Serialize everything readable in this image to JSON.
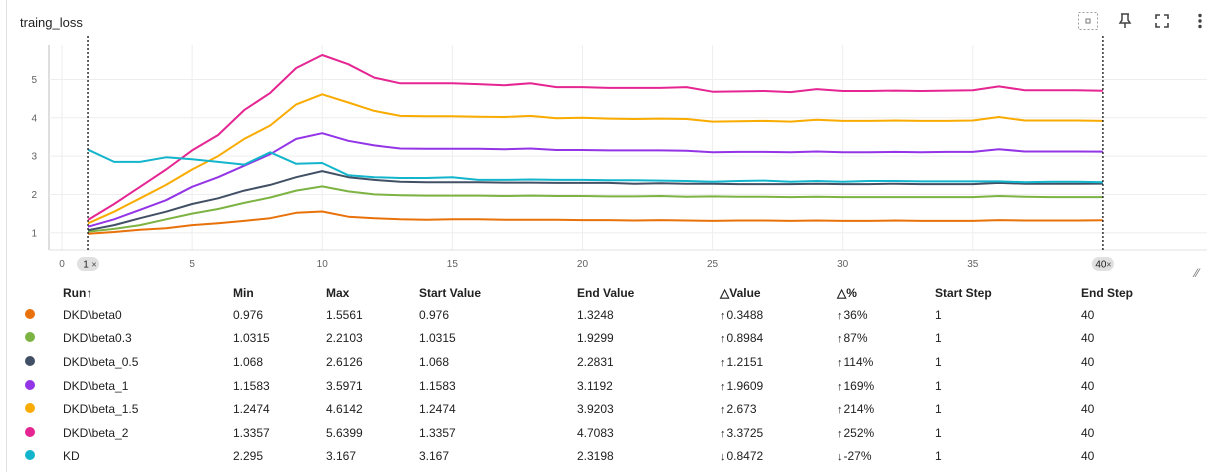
{
  "card": {
    "title": "traing_loss",
    "toolbar": [
      "fit-domain-icon",
      "pin-icon",
      "fullscreen-icon",
      "more-vert-icon"
    ]
  },
  "chart_data": {
    "type": "line",
    "title": "traing_loss",
    "xlabel": "",
    "ylabel": "",
    "xlim": [
      -0.5,
      44
    ],
    "ylim": [
      0.55,
      5.9
    ],
    "x_ticks": [
      0,
      5,
      10,
      15,
      20,
      25,
      30,
      35
    ],
    "y_ticks": [
      1,
      2,
      3,
      4,
      5
    ],
    "x_range_markers": [
      1,
      40
    ],
    "grid": true,
    "x": [
      1,
      2,
      3,
      4,
      5,
      6,
      7,
      8,
      9,
      10,
      11,
      12,
      13,
      14,
      15,
      16,
      17,
      18,
      19,
      20,
      21,
      22,
      23,
      24,
      25,
      26,
      27,
      28,
      29,
      30,
      31,
      32,
      33,
      34,
      35,
      36,
      37,
      38,
      39,
      40
    ],
    "series": [
      {
        "name": "DKD\\beta0",
        "color": "#e8710a",
        "values": [
          0.976,
          1.02,
          1.08,
          1.12,
          1.2,
          1.25,
          1.31,
          1.38,
          1.52,
          1.556,
          1.42,
          1.38,
          1.35,
          1.34,
          1.35,
          1.35,
          1.34,
          1.34,
          1.34,
          1.33,
          1.33,
          1.32,
          1.33,
          1.32,
          1.31,
          1.32,
          1.32,
          1.31,
          1.32,
          1.31,
          1.31,
          1.32,
          1.31,
          1.31,
          1.31,
          1.33,
          1.32,
          1.32,
          1.32,
          1.325
        ]
      },
      {
        "name": "DKD\\beta0.3",
        "color": "#7cb342",
        "values": [
          1.0315,
          1.1,
          1.2,
          1.35,
          1.5,
          1.62,
          1.78,
          1.92,
          2.1,
          2.21,
          2.08,
          2.0,
          1.98,
          1.97,
          1.97,
          1.97,
          1.96,
          1.97,
          1.96,
          1.96,
          1.95,
          1.95,
          1.96,
          1.94,
          1.95,
          1.94,
          1.94,
          1.93,
          1.94,
          1.93,
          1.93,
          1.93,
          1.93,
          1.93,
          1.93,
          1.96,
          1.94,
          1.93,
          1.93,
          1.93
        ]
      },
      {
        "name": "DKD\\beta_0.5",
        "color": "#425066",
        "values": [
          1.068,
          1.2,
          1.38,
          1.55,
          1.75,
          1.9,
          2.1,
          2.25,
          2.45,
          2.61,
          2.45,
          2.38,
          2.33,
          2.32,
          2.32,
          2.32,
          2.31,
          2.31,
          2.3,
          2.3,
          2.3,
          2.28,
          2.29,
          2.28,
          2.28,
          2.27,
          2.27,
          2.27,
          2.28,
          2.27,
          2.27,
          2.28,
          2.27,
          2.27,
          2.27,
          2.3,
          2.28,
          2.28,
          2.28,
          2.283
        ]
      },
      {
        "name": "DKD\\beta_1",
        "color": "#9334e6",
        "values": [
          1.1583,
          1.35,
          1.6,
          1.85,
          2.2,
          2.45,
          2.75,
          3.05,
          3.45,
          3.597,
          3.4,
          3.28,
          3.2,
          3.19,
          3.19,
          3.19,
          3.18,
          3.2,
          3.16,
          3.16,
          3.15,
          3.15,
          3.15,
          3.14,
          3.1,
          3.11,
          3.11,
          3.1,
          3.12,
          3.1,
          3.1,
          3.11,
          3.1,
          3.11,
          3.11,
          3.18,
          3.12,
          3.12,
          3.12,
          3.119
        ]
      },
      {
        "name": "DKD\\beta_1.5",
        "color": "#f9ab00",
        "values": [
          1.2474,
          1.55,
          1.9,
          2.25,
          2.65,
          3.0,
          3.45,
          3.8,
          4.35,
          4.614,
          4.4,
          4.18,
          4.05,
          4.04,
          4.04,
          4.03,
          4.02,
          4.05,
          3.99,
          4.0,
          3.98,
          3.97,
          3.98,
          3.97,
          3.9,
          3.91,
          3.92,
          3.9,
          3.95,
          3.92,
          3.92,
          3.93,
          3.92,
          3.92,
          3.93,
          4.02,
          3.93,
          3.93,
          3.93,
          3.92
        ]
      },
      {
        "name": "DKD\\beta_2",
        "color": "#e52592",
        "values": [
          1.3357,
          1.75,
          2.2,
          2.65,
          3.15,
          3.55,
          4.2,
          4.65,
          5.3,
          5.64,
          5.4,
          5.05,
          4.9,
          4.9,
          4.9,
          4.88,
          4.85,
          4.9,
          4.8,
          4.8,
          4.78,
          4.78,
          4.78,
          4.8,
          4.68,
          4.69,
          4.7,
          4.67,
          4.75,
          4.7,
          4.7,
          4.71,
          4.7,
          4.71,
          4.72,
          4.82,
          4.72,
          4.72,
          4.72,
          4.708
        ]
      },
      {
        "name": "KD",
        "color": "#12b5cb",
        "values": [
          3.167,
          2.85,
          2.85,
          2.97,
          2.92,
          2.85,
          2.78,
          3.1,
          2.8,
          2.82,
          2.5,
          2.45,
          2.43,
          2.43,
          2.45,
          2.38,
          2.38,
          2.39,
          2.38,
          2.38,
          2.37,
          2.37,
          2.36,
          2.35,
          2.33,
          2.35,
          2.36,
          2.33,
          2.35,
          2.33,
          2.35,
          2.35,
          2.34,
          2.34,
          2.34,
          2.34,
          2.32,
          2.33,
          2.33,
          2.32
        ]
      }
    ]
  },
  "x_marker_labels": [
    "1",
    "40"
  ],
  "table": {
    "headers": [
      "Run",
      "Min",
      "Max",
      "Start Value",
      "End Value",
      "Value",
      "%",
      "Start Step",
      "End Step"
    ],
    "sort_indicator": "↑",
    "delta_symbol": "△",
    "rows": [
      {
        "run": "DKD\\beta0",
        "color": "#e8710a",
        "min": "0.976",
        "max": "1.5561",
        "start": "0.976",
        "end": "1.3248",
        "dir": "↑",
        "delta": "0.3488",
        "pct": "36%",
        "start_step": "1",
        "end_step": "40"
      },
      {
        "run": "DKD\\beta0.3",
        "color": "#7cb342",
        "min": "1.0315",
        "max": "2.2103",
        "start": "1.0315",
        "end": "1.9299",
        "dir": "↑",
        "delta": "0.8984",
        "pct": "87%",
        "start_step": "1",
        "end_step": "40"
      },
      {
        "run": "DKD\\beta_0.5",
        "color": "#425066",
        "min": "1.068",
        "max": "2.6126",
        "start": "1.068",
        "end": "2.2831",
        "dir": "↑",
        "delta": "1.2151",
        "pct": "114%",
        "start_step": "1",
        "end_step": "40"
      },
      {
        "run": "DKD\\beta_1",
        "color": "#9334e6",
        "min": "1.1583",
        "max": "3.5971",
        "start": "1.1583",
        "end": "3.1192",
        "dir": "↑",
        "delta": "1.9609",
        "pct": "169%",
        "start_step": "1",
        "end_step": "40"
      },
      {
        "run": "DKD\\beta_1.5",
        "color": "#f9ab00",
        "min": "1.2474",
        "max": "4.6142",
        "start": "1.2474",
        "end": "3.9203",
        "dir": "↑",
        "delta": "2.673",
        "pct": "214%",
        "start_step": "1",
        "end_step": "40"
      },
      {
        "run": "DKD\\beta_2",
        "color": "#e52592",
        "min": "1.3357",
        "max": "5.6399",
        "start": "1.3357",
        "end": "4.7083",
        "dir": "↑",
        "delta": "3.3725",
        "pct": "252%",
        "start_step": "1",
        "end_step": "40"
      },
      {
        "run": "KD",
        "color": "#12b5cb",
        "min": "2.295",
        "max": "3.167",
        "start": "3.167",
        "end": "2.3198",
        "dir": "↓",
        "delta": "0.8472",
        "pct": "-27%",
        "start_step": "1",
        "end_step": "40"
      }
    ]
  }
}
